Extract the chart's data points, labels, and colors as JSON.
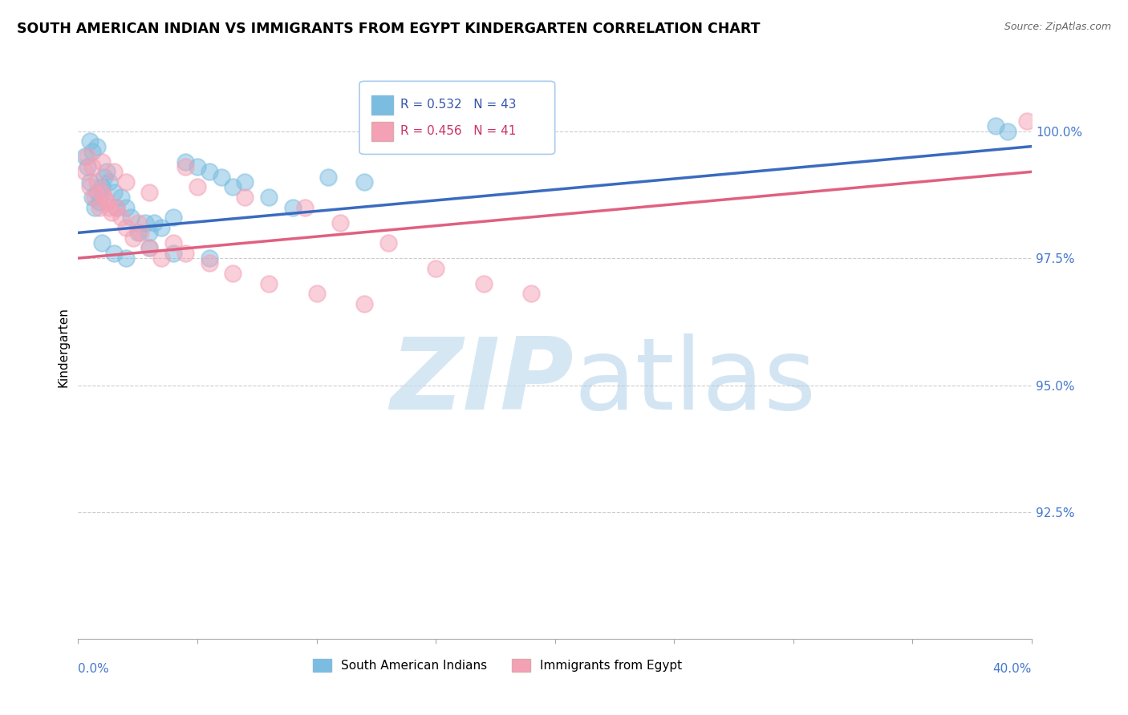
{
  "title": "SOUTH AMERICAN INDIAN VS IMMIGRANTS FROM EGYPT KINDERGARTEN CORRELATION CHART",
  "source": "Source: ZipAtlas.com",
  "ylabel": "Kindergarten",
  "xlim": [
    0.0,
    40.0
  ],
  "ylim": [
    90.0,
    101.5
  ],
  "yticks": [
    92.5,
    95.0,
    97.5,
    100.0
  ],
  "ytick_labels": [
    "92.5%",
    "95.0%",
    "97.5%",
    "100.0%"
  ],
  "xticks": [
    0,
    5,
    10,
    15,
    20,
    25,
    30,
    35,
    40
  ],
  "R_blue": 0.532,
  "N_blue": 43,
  "R_pink": 0.456,
  "N_pink": 41,
  "blue_color": "#7bbde0",
  "pink_color": "#f4a0b5",
  "trend_blue": "#3a6bbf",
  "trend_pink": "#e06080",
  "legend_label_blue": "South American Indians",
  "legend_label_pink": "Immigrants from Egypt",
  "watermark_zip": "ZIP",
  "watermark_atlas": "atlas",
  "blue_x": [
    0.3,
    0.4,
    0.5,
    0.6,
    0.7,
    0.8,
    0.9,
    1.0,
    1.1,
    1.2,
    1.3,
    1.5,
    1.6,
    1.8,
    2.0,
    2.2,
    2.5,
    2.8,
    3.0,
    3.2,
    3.5,
    4.0,
    4.5,
    5.0,
    5.5,
    6.0,
    6.5,
    7.0,
    8.0,
    9.0,
    10.5,
    12.0,
    1.0,
    1.5,
    2.0,
    3.0,
    4.0,
    5.5,
    38.5,
    39.0,
    0.5,
    0.6,
    0.8
  ],
  "blue_y": [
    99.5,
    99.3,
    99.0,
    98.7,
    98.5,
    98.8,
    98.6,
    98.9,
    99.1,
    99.2,
    99.0,
    98.8,
    98.5,
    98.7,
    98.5,
    98.3,
    98.0,
    98.2,
    98.0,
    98.2,
    98.1,
    98.3,
    99.4,
    99.3,
    99.2,
    99.1,
    98.9,
    99.0,
    98.7,
    98.5,
    99.1,
    99.0,
    97.8,
    97.6,
    97.5,
    97.7,
    97.6,
    97.5,
    100.1,
    100.0,
    99.8,
    99.6,
    99.7
  ],
  "pink_x": [
    0.3,
    0.5,
    0.7,
    0.9,
    1.0,
    1.2,
    1.4,
    1.6,
    1.8,
    2.0,
    2.3,
    2.6,
    3.0,
    3.5,
    4.0,
    4.5,
    5.5,
    6.5,
    8.0,
    10.0,
    12.0,
    1.0,
    1.5,
    2.0,
    3.0,
    4.5,
    5.0,
    7.0,
    9.5,
    11.0,
    13.0,
    15.0,
    17.0,
    19.0,
    39.8,
    0.4,
    0.6,
    0.8,
    1.1,
    1.3,
    2.5
  ],
  "pink_y": [
    99.2,
    98.9,
    98.7,
    98.5,
    98.8,
    98.6,
    98.4,
    98.5,
    98.3,
    98.1,
    97.9,
    98.0,
    97.7,
    97.5,
    97.8,
    97.6,
    97.4,
    97.2,
    97.0,
    96.8,
    96.6,
    99.4,
    99.2,
    99.0,
    98.8,
    99.3,
    98.9,
    98.7,
    98.5,
    98.2,
    97.8,
    97.3,
    97.0,
    96.8,
    100.2,
    99.5,
    99.3,
    99.0,
    98.7,
    98.5,
    98.2
  ]
}
